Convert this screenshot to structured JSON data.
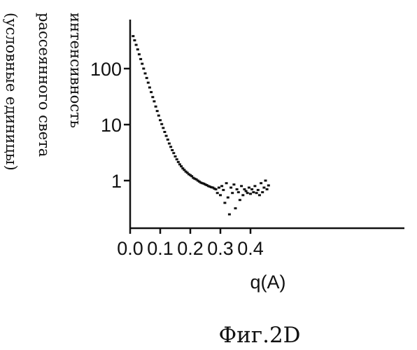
{
  "chart_data": {
    "type": "scatter",
    "title": "",
    "caption": "Фиг.2D",
    "xlabel": "q(A)",
    "ylabel_lines": [
      "интенсивность",
      "рассеянного света",
      "(условные единицы)"
    ],
    "xlim": [
      0.0,
      0.47
    ],
    "ylim": [
      0.15,
      600
    ],
    "yscale": "log",
    "x_ticks": [
      "0.0",
      "0.1",
      "0.2",
      "0.3",
      "0.4"
    ],
    "y_ticks": [
      "100",
      "10",
      "1"
    ],
    "grid": false,
    "legend": "none",
    "marker_color": "#111111",
    "series": [
      {
        "x": [
          0.01,
          0.015,
          0.02,
          0.025,
          0.03,
          0.035,
          0.04,
          0.045,
          0.05,
          0.055,
          0.06,
          0.065,
          0.07,
          0.075,
          0.08,
          0.085,
          0.09,
          0.095,
          0.1,
          0.105,
          0.11,
          0.115,
          0.12,
          0.125,
          0.13,
          0.135,
          0.14,
          0.145,
          0.15,
          0.155,
          0.16,
          0.165,
          0.17,
          0.175,
          0.18,
          0.185,
          0.19,
          0.195,
          0.2,
          0.205,
          0.21,
          0.215,
          0.22,
          0.225,
          0.23,
          0.235,
          0.24,
          0.245,
          0.25,
          0.255,
          0.26,
          0.265,
          0.27,
          0.275,
          0.28,
          0.285,
          0.29,
          0.295,
          0.3,
          0.305,
          0.31,
          0.315,
          0.32,
          0.325,
          0.33,
          0.335,
          0.34,
          0.345,
          0.35,
          0.355,
          0.36,
          0.365,
          0.37,
          0.375,
          0.38,
          0.385,
          0.39,
          0.395,
          0.4,
          0.405,
          0.41,
          0.415,
          0.42,
          0.425,
          0.43,
          0.435,
          0.44,
          0.445,
          0.45,
          0.455,
          0.46
        ],
        "y": [
          380,
          320,
          265,
          220,
          180,
          148,
          122,
          100,
          82,
          68,
          56,
          46,
          38,
          31,
          26,
          21,
          17.5,
          14.5,
          12,
          10.2,
          8.7,
          7.4,
          6.3,
          5.4,
          4.6,
          4.0,
          3.5,
          3.1,
          2.7,
          2.4,
          2.15,
          1.95,
          1.8,
          1.65,
          1.55,
          1.45,
          1.38,
          1.3,
          1.25,
          1.2,
          1.12,
          1.08,
          1.05,
          1.0,
          0.96,
          0.92,
          0.9,
          0.88,
          0.85,
          0.83,
          0.8,
          0.78,
          0.76,
          0.75,
          0.72,
          0.7,
          0.6,
          0.75,
          0.55,
          0.8,
          0.68,
          0.4,
          0.9,
          0.5,
          0.25,
          0.75,
          0.6,
          0.85,
          0.32,
          0.7,
          0.62,
          0.45,
          0.8,
          0.55,
          0.7,
          0.65,
          0.6,
          0.75,
          0.58,
          0.7,
          0.62,
          0.8,
          0.6,
          0.68,
          0.55,
          0.9,
          0.62,
          0.75,
          1.0,
          0.7,
          0.82
        ]
      }
    ]
  }
}
